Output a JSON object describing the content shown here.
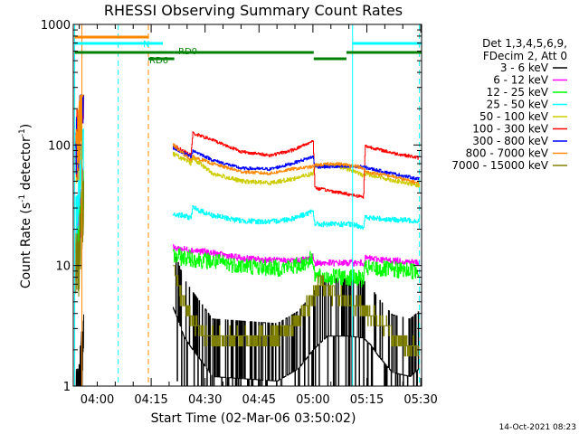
{
  "chart_data": {
    "type": "line",
    "title": "RHESSI Observing Summary Count Rates",
    "xlabel": "Start Time (02-Mar-06 03:50:02)",
    "ylabel_prefix": "Count Rate (s",
    "ylabel_mid": " detector",
    "ylabel_suffix": ")",
    "ylabel_exp": "-1",
    "ylog": true,
    "ylim": [
      1,
      1000
    ],
    "xlim_minutes": [
      3.3,
      100.2
    ],
    "x_ticks": [
      {
        "label": "04:00",
        "minutes": 9.97
      },
      {
        "label": "04:15",
        "minutes": 24.97
      },
      {
        "label": "04:30",
        "minutes": 39.97
      },
      {
        "label": "04:45",
        "minutes": 54.97
      },
      {
        "label": "05:00",
        "minutes": 69.97
      },
      {
        "label": "05:15",
        "minutes": 84.97
      },
      {
        "label": "05:30",
        "minutes": 99.97
      }
    ],
    "y_ticks": [
      {
        "label": "1",
        "value": 1
      },
      {
        "label": "10",
        "value": 10
      },
      {
        "label": "100",
        "value": 100
      },
      {
        "label": "1000",
        "value": 1000
      }
    ],
    "legend_header": [
      "Det 1,3,4,5,6,9,",
      "FDecim 2, Att 0"
    ],
    "legend_position": "right",
    "series": [
      {
        "name": "3 - 6 keV",
        "color": "#000000",
        "base": 0.7,
        "noise": 0.25,
        "spiky": true,
        "points": [
          [
            31,
            4.5
          ],
          [
            32.5,
            3.5
          ],
          [
            34,
            2.6
          ],
          [
            36,
            2.1
          ],
          [
            39,
            1.6
          ],
          [
            42,
            1.2
          ],
          [
            60,
            1.1
          ],
          [
            66,
            1.4
          ],
          [
            70,
            2.0
          ],
          [
            74,
            2.6
          ],
          [
            80,
            2.6
          ],
          [
            84,
            2.5
          ],
          [
            86,
            2.2
          ],
          [
            88,
            1.8
          ],
          [
            92,
            1.3
          ],
          [
            97,
            1.2
          ],
          [
            99.5,
            1.4
          ]
        ]
      },
      {
        "name": "6 - 12 keV",
        "color": "#ff00ff",
        "base": 14,
        "noise": 0.06,
        "points": [
          [
            31,
            14
          ],
          [
            40,
            13
          ],
          [
            50,
            11.5
          ],
          [
            60,
            11
          ],
          [
            66,
            11
          ],
          [
            70,
            11.8
          ],
          [
            70.5,
            10.5
          ],
          [
            80,
            10.5
          ],
          [
            84,
            10.5
          ],
          [
            84.5,
            11.5
          ],
          [
            92,
            11
          ],
          [
            99.5,
            10.6
          ]
        ]
      },
      {
        "name": "12 - 25 keV",
        "color": "#00ff00",
        "base": 12,
        "noise": 0.16,
        "points": [
          [
            31,
            12
          ],
          [
            40,
            11
          ],
          [
            50,
            10
          ],
          [
            60,
            9.5
          ],
          [
            66,
            10
          ],
          [
            70,
            11.5
          ],
          [
            70.5,
            8
          ],
          [
            80,
            8
          ],
          [
            84,
            7.7
          ],
          [
            84.5,
            9.5
          ],
          [
            92,
            9.2
          ],
          [
            99.5,
            9
          ]
        ]
      },
      {
        "name": "25 - 50 keV",
        "color": "#00ffff",
        "base": 27,
        "noise": 0.05,
        "points": [
          [
            31,
            27
          ],
          [
            36,
            25
          ],
          [
            36.5,
            30
          ],
          [
            42,
            26
          ],
          [
            50,
            23.5
          ],
          [
            58,
            23
          ],
          [
            64,
            24.5
          ],
          [
            70,
            28
          ],
          [
            70.5,
            22
          ],
          [
            80,
            22
          ],
          [
            84,
            21
          ],
          [
            84.5,
            25
          ],
          [
            92,
            24
          ],
          [
            99.5,
            23.5
          ]
        ]
      },
      {
        "name": "50 - 100 keV",
        "color": "#cccc00",
        "base": 85,
        "noise": 0.04,
        "points": [
          [
            31,
            85
          ],
          [
            36,
            70
          ],
          [
            36.5,
            78
          ],
          [
            42,
            58
          ],
          [
            50,
            50
          ],
          [
            58,
            48.5
          ],
          [
            64,
            52
          ],
          [
            70,
            58
          ],
          [
            70.5,
            68
          ],
          [
            76,
            68
          ],
          [
            82,
            60
          ],
          [
            84,
            55
          ],
          [
            84.5,
            58
          ],
          [
            92,
            51
          ],
          [
            99.5,
            46
          ]
        ]
      },
      {
        "name": "100 - 300 keV",
        "color": "#ff0000",
        "base": 100,
        "noise": 0.03,
        "points": [
          [
            31,
            100
          ],
          [
            36,
            82
          ],
          [
            36.5,
            125
          ],
          [
            42,
            110
          ],
          [
            50,
            88
          ],
          [
            58,
            82
          ],
          [
            64,
            90
          ],
          [
            70,
            108
          ],
          [
            70.5,
            44
          ],
          [
            76,
            41
          ],
          [
            82,
            38
          ],
          [
            84,
            37
          ],
          [
            84.5,
            98
          ],
          [
            92,
            86
          ],
          [
            99.5,
            78
          ]
        ]
      },
      {
        "name": "300 - 800 keV",
        "color": "#0000ff",
        "base": 95,
        "noise": 0.03,
        "points": [
          [
            31,
            95
          ],
          [
            36,
            80
          ],
          [
            36.5,
            90
          ],
          [
            42,
            75
          ],
          [
            50,
            64
          ],
          [
            58,
            63
          ],
          [
            64,
            70
          ],
          [
            70,
            80
          ],
          [
            70.5,
            66
          ],
          [
            76,
            66
          ],
          [
            82,
            66
          ],
          [
            84,
            66
          ],
          [
            84.5,
            65
          ],
          [
            92,
            58
          ],
          [
            99.5,
            52
          ]
        ]
      },
      {
        "name": "800 - 7000 keV",
        "color": "#ff8800",
        "base": 100,
        "noise": 0.03,
        "points": [
          [
            31,
            100
          ],
          [
            36,
            75
          ],
          [
            36.5,
            80
          ],
          [
            42,
            70
          ],
          [
            50,
            60
          ],
          [
            58,
            58
          ],
          [
            64,
            63
          ],
          [
            70,
            66
          ],
          [
            70.5,
            68
          ],
          [
            76,
            70
          ],
          [
            82,
            67
          ],
          [
            84,
            63
          ],
          [
            84.5,
            60
          ],
          [
            92,
            55
          ],
          [
            99.5,
            48
          ]
        ]
      },
      {
        "name": "7000 - 15000 keV",
        "color": "#808000",
        "base": 10,
        "noise": 0.18,
        "stepped": true,
        "points": [
          [
            31,
            10
          ],
          [
            33,
            6
          ],
          [
            35,
            4.2
          ],
          [
            37,
            3.2
          ],
          [
            40,
            2.6
          ],
          [
            50,
            2.4
          ],
          [
            60,
            2.6
          ],
          [
            64,
            3.0
          ],
          [
            68,
            4.5
          ],
          [
            72,
            7
          ],
          [
            75,
            6
          ],
          [
            80,
            5
          ],
          [
            84,
            4.3
          ],
          [
            88,
            3.5
          ],
          [
            92,
            2.6
          ],
          [
            96,
            2.2
          ],
          [
            99.5,
            2.0
          ]
        ]
      }
    ],
    "markers": [
      {
        "label": "N",
        "color": "#00ffff",
        "start": 3.7,
        "end": 28.2,
        "level": "upper"
      },
      {
        "label": "",
        "color": "#00ffff",
        "start": 81,
        "end": 100.2,
        "level": "upper"
      },
      {
        "label": "",
        "color": "#ff8800",
        "start": 3.7,
        "end": 24.2,
        "level": "top"
      },
      {
        "label": "RD6",
        "color": "#008000",
        "start": 3.7,
        "end": 31.4,
        "level": "middle"
      },
      {
        "label": "RD0",
        "color": "#008000",
        "start": 24.2,
        "end": 100.2,
        "level": "mixed"
      }
    ],
    "vlines": [
      {
        "minutes": 3.7,
        "color": "#00ffff",
        "dashed": false
      },
      {
        "minutes": 5.7,
        "color": "#ff8800",
        "dashed": false
      },
      {
        "minutes": 15.8,
        "color": "#00ffff",
        "dashed": true
      },
      {
        "minutes": 24.2,
        "color": "#ff8800",
        "dashed": true
      },
      {
        "minutes": 81,
        "color": "#00ffff",
        "dashed": false
      },
      {
        "minutes": 99.6,
        "color": "#00ffff",
        "dashed": true
      }
    ]
  },
  "footer_date": "14-Oct-2021 08:23"
}
